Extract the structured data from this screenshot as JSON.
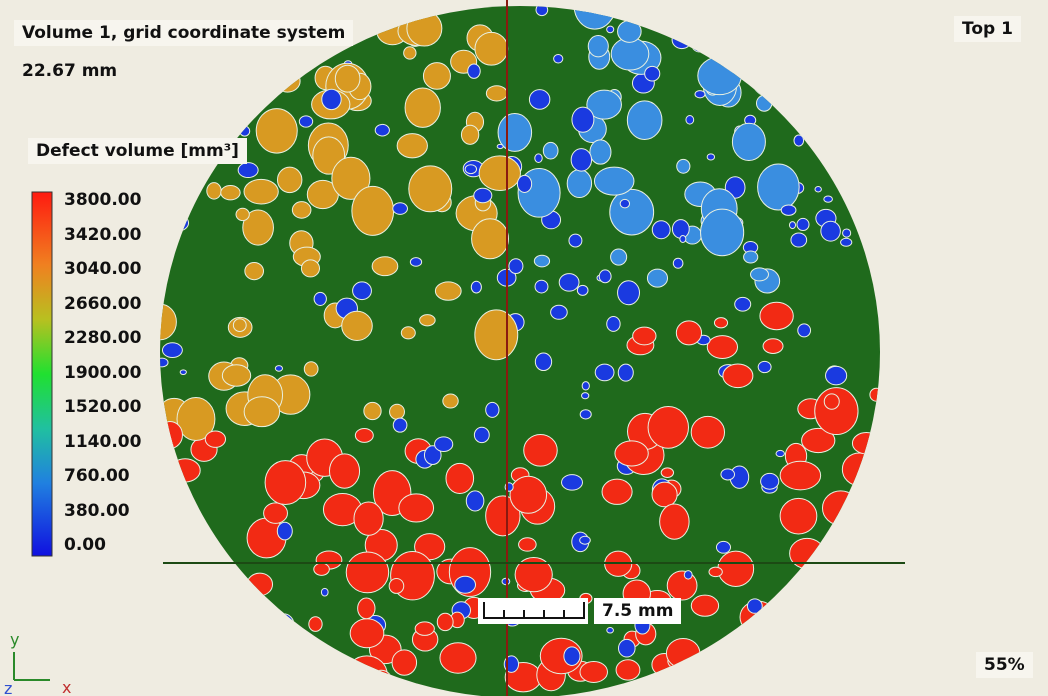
{
  "header": {
    "title": "Volume 1, grid coordinate system",
    "distance": "22.67 mm",
    "view": "Top 1"
  },
  "legend": {
    "title": "Defect volume [mm³]",
    "labels": [
      "3800.00",
      "3420.00",
      "3040.00",
      "2660.00",
      "2280.00",
      "1900.00",
      "1520.00",
      "1140.00",
      "760.00",
      "380.00",
      "0.00"
    ]
  },
  "scale_bar": {
    "label": "7.5 mm"
  },
  "footer": {
    "zoom": "55%"
  },
  "axes": {
    "y": "y",
    "z": "z",
    "x": "x"
  }
}
